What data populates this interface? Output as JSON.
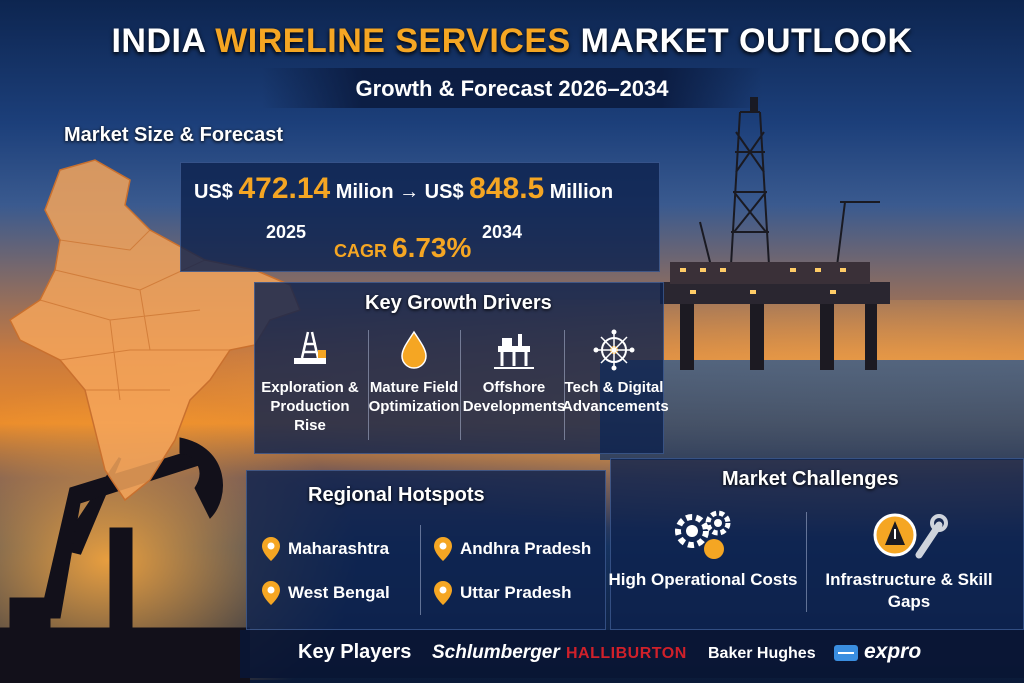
{
  "title": {
    "part1": "INDIA ",
    "highlight": "WIRELINE SERVICES",
    "part2": " MARKET OUTLOOK"
  },
  "subtitle": "Growth & Forecast 2026–2034",
  "market_size": {
    "header": "Market Size & Forecast",
    "currency1": "US$ ",
    "value_2025": "472.14",
    "unit1": " Milion → US$ ",
    "value_2034": "848.5",
    "unit2": " Million",
    "year_start": "2025",
    "year_end": "2034",
    "cagr_label": "CAGR ",
    "cagr_value": "6.73%"
  },
  "growth_drivers": {
    "header": "Key Growth Drivers",
    "items": [
      {
        "label": "Exploration & Production Rise",
        "icon": "drill-rig-icon"
      },
      {
        "label": "Mature Field Optimization",
        "icon": "oil-drop-icon"
      },
      {
        "label": "Offshore Developments",
        "icon": "offshore-platform-icon"
      },
      {
        "label": "Tech & Digital Advancements",
        "icon": "digital-network-icon"
      }
    ]
  },
  "regional_hotspots": {
    "header": "Regional Hotspots",
    "items": [
      "Maharashtra",
      "Andhra Pradesh",
      "West Bengal",
      "Uttar Pradesh"
    ]
  },
  "market_challenges": {
    "header": "Market Challenges",
    "items": [
      {
        "label": "High Operational Costs",
        "icon": "gears-icon"
      },
      {
        "label": "Infrastructure & Skill Gaps",
        "icon": "warning-wrench-icon"
      }
    ]
  },
  "key_players": {
    "label": "Key Players",
    "companies": [
      "Schlumberger",
      "HALLIBURTON",
      "Baker Hughes",
      "expro"
    ]
  },
  "colors": {
    "accent": "#f5a623",
    "halliburton": "#d0202a",
    "panel": "#0e224e"
  }
}
